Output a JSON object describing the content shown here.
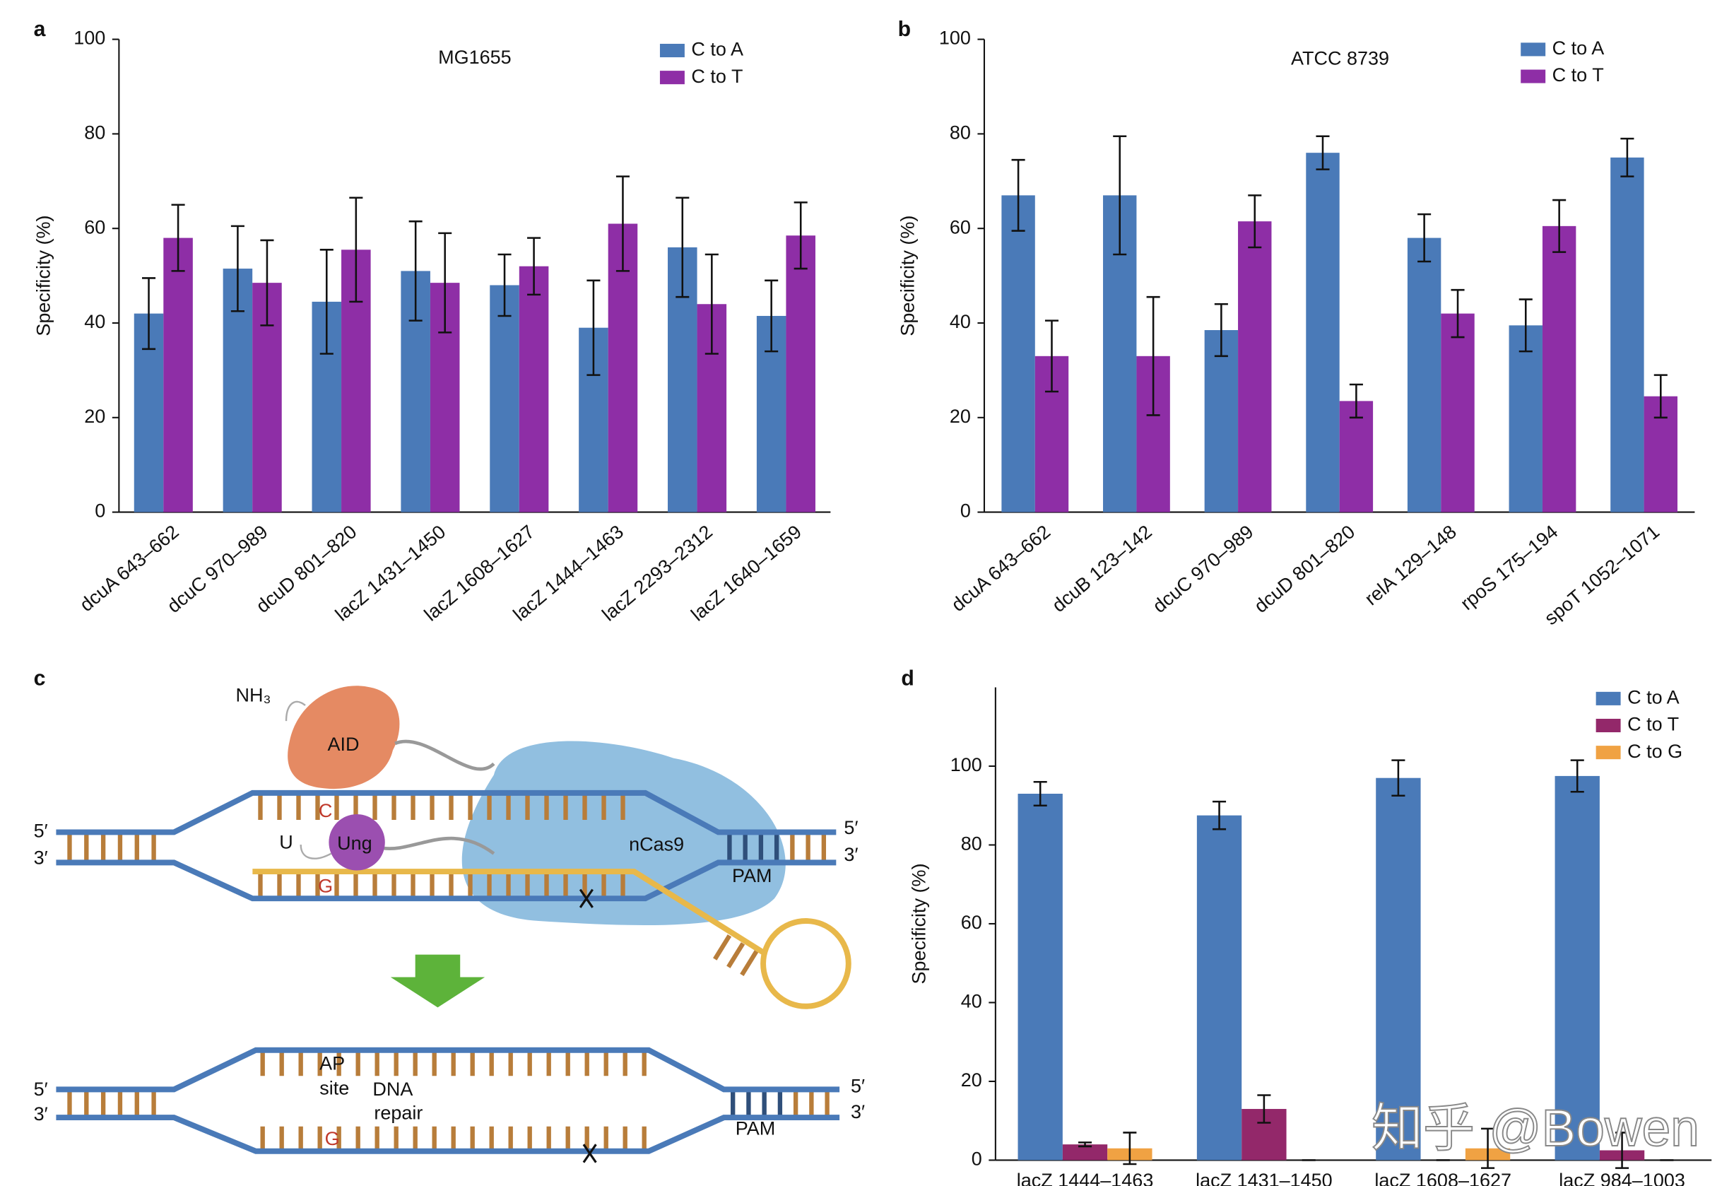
{
  "chart_data": [
    {
      "type": "bar",
      "panel": "a",
      "title": "MG1655",
      "ylabel": "Specificity (%)",
      "categories": [
        "dcuA 643–662",
        "dcuC 970–989",
        "dcuD 801–820",
        "lacZ 1431–1450",
        "lacZ 1608–1627",
        "lacZ 1444–1463",
        "lacZ 2293–2312",
        "lacZ 1640–1659"
      ],
      "series": [
        {
          "name": "C to A",
          "color": "#4a7ab8",
          "values": [
            42,
            51.5,
            44.5,
            51,
            48,
            39,
            56,
            41.5
          ],
          "errors": [
            7.5,
            9,
            11,
            10.5,
            6.5,
            10,
            10.5,
            7.5
          ]
        },
        {
          "name": "C to T",
          "color": "#8e2ea6",
          "values": [
            58,
            48.5,
            55.5,
            48.5,
            52,
            61,
            44,
            58.5
          ],
          "errors": [
            7,
            9,
            11,
            10.5,
            6,
            10,
            10.5,
            7
          ]
        }
      ],
      "ylim": [
        0,
        100
      ],
      "yticks": [
        0,
        20,
        40,
        60,
        80,
        100
      ],
      "legend": "upper right"
    },
    {
      "type": "bar",
      "panel": "b",
      "title": "ATCC 8739",
      "ylabel": "Specificity (%)",
      "categories": [
        "dcuA 643–662",
        "dcuB 123–142",
        "dcuC 970–989",
        "dcuD 801–820",
        "relA 129–148",
        "rpoS 175–194",
        "spoT 1052–1071"
      ],
      "series": [
        {
          "name": "C to A",
          "color": "#4a7ab8",
          "values": [
            67,
            67,
            38.5,
            76,
            58,
            39.5,
            75
          ],
          "errors": [
            7.5,
            12.5,
            5.5,
            3.5,
            5,
            5.5,
            4
          ]
        },
        {
          "name": "C to T",
          "color": "#8e2ea6",
          "values": [
            33,
            33,
            61.5,
            23.5,
            42,
            60.5,
            24.5
          ],
          "errors": [
            7.5,
            12.5,
            5.5,
            3.5,
            5,
            5.5,
            4.5
          ]
        }
      ],
      "ylim": [
        0,
        100
      ],
      "yticks": [
        0,
        20,
        40,
        60,
        80,
        100
      ],
      "legend": "upper right"
    },
    {
      "type": "bar",
      "panel": "d",
      "ylabel": "Specificity (%)",
      "categories": [
        "lacZ 1444–1463",
        "lacZ 1431–1450",
        "lacZ 1608–1627",
        "lacZ 984–1003"
      ],
      "series": [
        {
          "name": "C to A",
          "color": "#4a7ab8",
          "values": [
            93,
            87.5,
            97,
            97.5
          ],
          "errors": [
            3,
            3.5,
            4.5,
            4
          ]
        },
        {
          "name": "C to T",
          "color": "#93286a",
          "values": [
            4,
            13,
            0,
            2.5
          ],
          "errors": [
            0.5,
            3.5,
            0,
            4.5
          ]
        },
        {
          "name": "C to G",
          "color": "#f0a243",
          "values": [
            3,
            0,
            3,
            0
          ],
          "errors": [
            4,
            0,
            5,
            0
          ]
        }
      ],
      "ylim": [
        0,
        120
      ],
      "yticks": [
        0,
        20,
        40,
        60,
        80,
        100
      ],
      "legend": "upper right"
    }
  ],
  "diagram": {
    "panel": "c",
    "nh3": "NH₃",
    "aid": "AID",
    "c": "C",
    "u": "U",
    "ung": "Ung",
    "g": "G",
    "ncas9": "nCas9",
    "pam": "PAM",
    "five": "5′",
    "three": "3′",
    "ap": "AP",
    "site": "site",
    "dna": "DNA",
    "repair": "repair"
  },
  "watermark": "知乎 @Bowen"
}
